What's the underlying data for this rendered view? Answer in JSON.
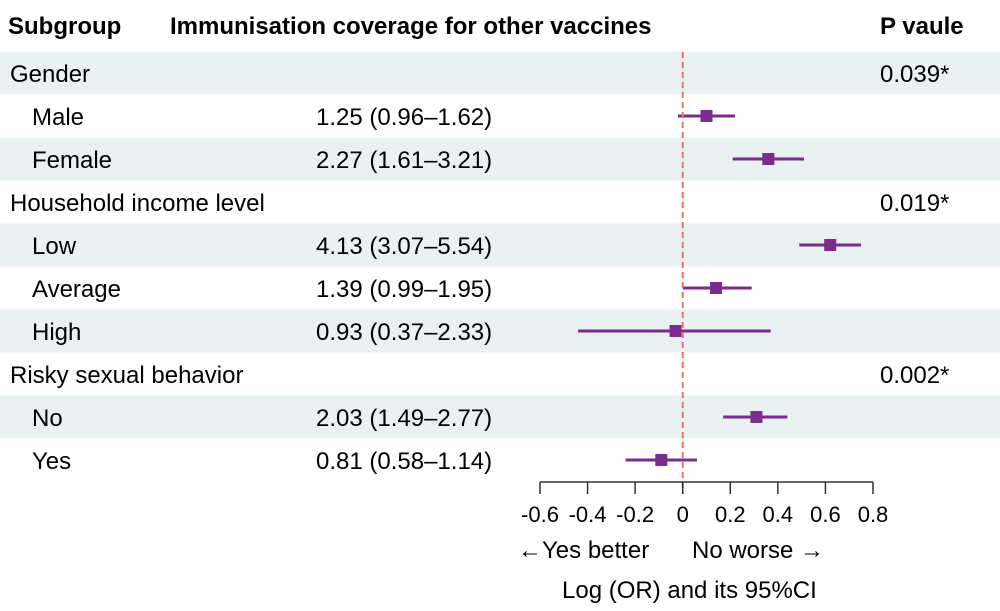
{
  "header": {
    "subgroup": "Subgroup",
    "coverage": "Immunisation coverage for other vaccines",
    "pvalue": "P vaule"
  },
  "axis_caption": {
    "direction_left": "←Yes better",
    "direction_right": "No worse →",
    "label": "Log (OR) and its 95%CI"
  },
  "colors": {
    "marker": "#7b2c8c",
    "ref_line": "#f07070",
    "band": "#eaf1f2",
    "axis": "#333333"
  },
  "chart_data": {
    "type": "forest",
    "title": "Immunisation coverage for other vaccines",
    "xlabel": "Log (OR) and its 95%CI",
    "xlim": [
      -0.6,
      0.8
    ],
    "xticks": [
      -0.6,
      -0.4,
      -0.2,
      0,
      0.2,
      0.4,
      0.6,
      0.8
    ],
    "reference_line": 0,
    "rows": [
      {
        "label": "Gender",
        "kind": "group",
        "pvalue": "0.039*"
      },
      {
        "label": "Male",
        "kind": "item",
        "or_text": "1.25 (0.96–1.62)",
        "est": 0.1,
        "lo": -0.02,
        "hi": 0.22
      },
      {
        "label": "Female",
        "kind": "item",
        "or_text": "2.27 (1.61–3.21)",
        "est": 0.36,
        "lo": 0.21,
        "hi": 0.51
      },
      {
        "label": "Household income level",
        "kind": "group",
        "pvalue": "0.019*"
      },
      {
        "label": "Low",
        "kind": "item",
        "or_text": "4.13 (3.07–5.54)",
        "est": 0.62,
        "lo": 0.49,
        "hi": 0.75
      },
      {
        "label": "Average",
        "kind": "item",
        "or_text": "1.39 (0.99–1.95)",
        "est": 0.14,
        "lo": 0.0,
        "hi": 0.29
      },
      {
        "label": "High",
        "kind": "item",
        "or_text": "0.93 (0.37–2.33)",
        "est": -0.03,
        "lo": -0.44,
        "hi": 0.37
      },
      {
        "label": "Risky sexual behavior",
        "kind": "group",
        "pvalue": "0.002*"
      },
      {
        "label": "No",
        "kind": "item",
        "or_text": "2.03 (1.49–2.77)",
        "est": 0.31,
        "lo": 0.17,
        "hi": 0.44
      },
      {
        "label": "Yes",
        "kind": "item",
        "or_text": "0.81 (0.58–1.14)",
        "est": -0.09,
        "lo": -0.24,
        "hi": 0.06
      }
    ]
  }
}
